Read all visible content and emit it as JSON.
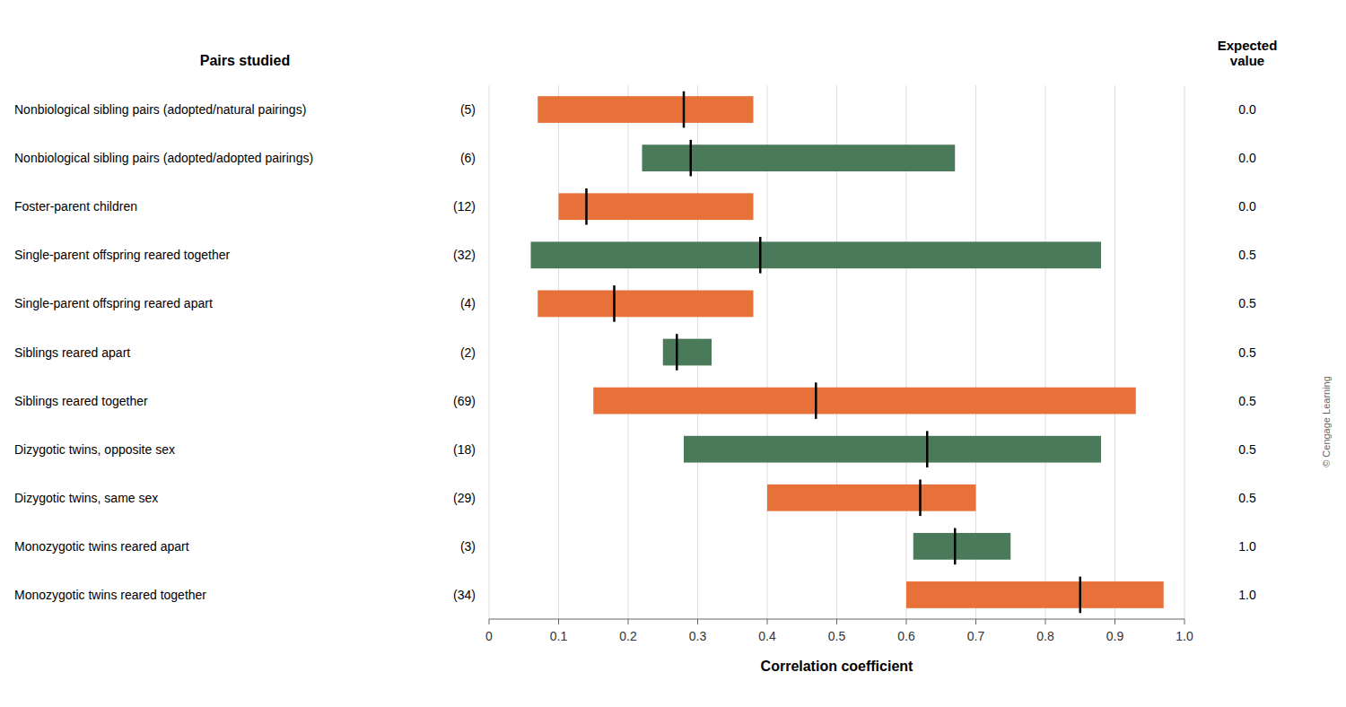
{
  "chart_data": {
    "type": "range_bar",
    "orientation": "horizontal",
    "title": "Pairs studied",
    "x_label": "Correlation coefficient",
    "categories": [
      "Nonbiological sibling pairs (adopted/natural pairings)",
      "Nonbiological sibling pairs (adopted/adopted pairings)",
      "Foster-parent children",
      "Single-parent offspring reared together",
      "Single-parent offspring reared apart",
      "Siblings reared apart",
      "Siblings reared together",
      "Dizygotic twins, opposite sex",
      "Dizygotic twins, same sex",
      "Monozygotic twins reared apart",
      "Monozygotic twins reared together"
    ],
    "n_labels": [
      "(5)",
      "(6)",
      "(12)",
      "(32)",
      "(4)",
      "(2)",
      "(69)",
      "(18)",
      "(29)",
      "(3)",
      "(34)"
    ],
    "low": [
      0.07,
      0.22,
      0.1,
      0.06,
      0.07,
      0.25,
      0.15,
      0.28,
      0.4,
      0.61,
      0.6
    ],
    "high": [
      0.38,
      0.67,
      0.38,
      0.88,
      0.38,
      0.32,
      0.93,
      0.88,
      0.7,
      0.75,
      0.97
    ],
    "median": [
      0.28,
      0.29,
      0.14,
      0.39,
      0.18,
      0.27,
      0.47,
      0.63,
      0.62,
      0.67,
      0.85
    ],
    "colors": [
      "#e8713a",
      "#4a7a5a",
      "#e8713a",
      "#4a7a5a",
      "#e8713a",
      "#4a7a5a",
      "#e8713a",
      "#4a7a5a",
      "#e8713a",
      "#4a7a5a",
      "#e8713a"
    ],
    "expected_title": "Expected\nvalue",
    "expected_labels": [
      "0.0",
      "0.0",
      "0.0",
      "0.5",
      "0.5",
      "0.5",
      "0.5",
      "0.5",
      "0.5",
      "1.0",
      "1.0"
    ],
    "xlim": [
      0,
      1.0
    ],
    "xticks": [
      0,
      0.1,
      0.2,
      0.3,
      0.4,
      0.5,
      0.6,
      0.7,
      0.8,
      0.9,
      {
        "value": 1.0,
        "label": "1.0"
      }
    ],
    "grid": true,
    "annotations": [
      "© Cengage Learning"
    ]
  }
}
